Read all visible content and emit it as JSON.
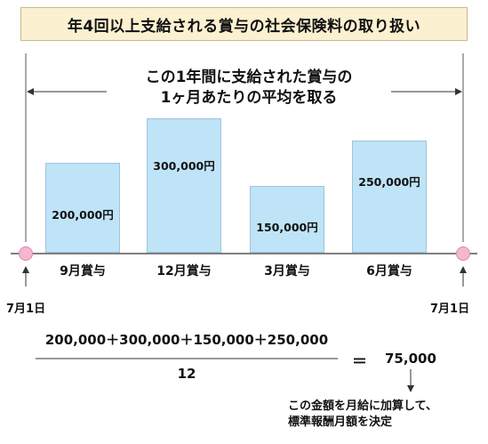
{
  "title": "年4回以上支給される賞与の社会保険料の取り扱い",
  "heading": {
    "line1": "この1年間に支給された賞与の",
    "line2": "1ヶ月あたりの平均を取る"
  },
  "bonuses": [
    {
      "label": "9月賞与",
      "amount": "200,000円",
      "value": 200000
    },
    {
      "label": "12月賞与",
      "amount": "300,000円",
      "value": 300000
    },
    {
      "label": "3月賞与",
      "amount": "150,000円",
      "value": 150000
    },
    {
      "label": "6月賞与",
      "amount": "250,000円",
      "value": 250000
    }
  ],
  "start_date": "7月1日",
  "end_date": "7月1日",
  "formula": {
    "numerator": "200,000＋300,000＋150,000＋250,000",
    "denominator": "12",
    "equals": "＝",
    "result": "75,000"
  },
  "note": {
    "line1": "この金額を月給に加算して、",
    "line2": "標準報酬月額を決定"
  },
  "colors": {
    "bar_fill": "#bfe3f7",
    "title_bg": "#fbf0cf",
    "dot": "#f7b6cf",
    "axis": "#333333"
  }
}
